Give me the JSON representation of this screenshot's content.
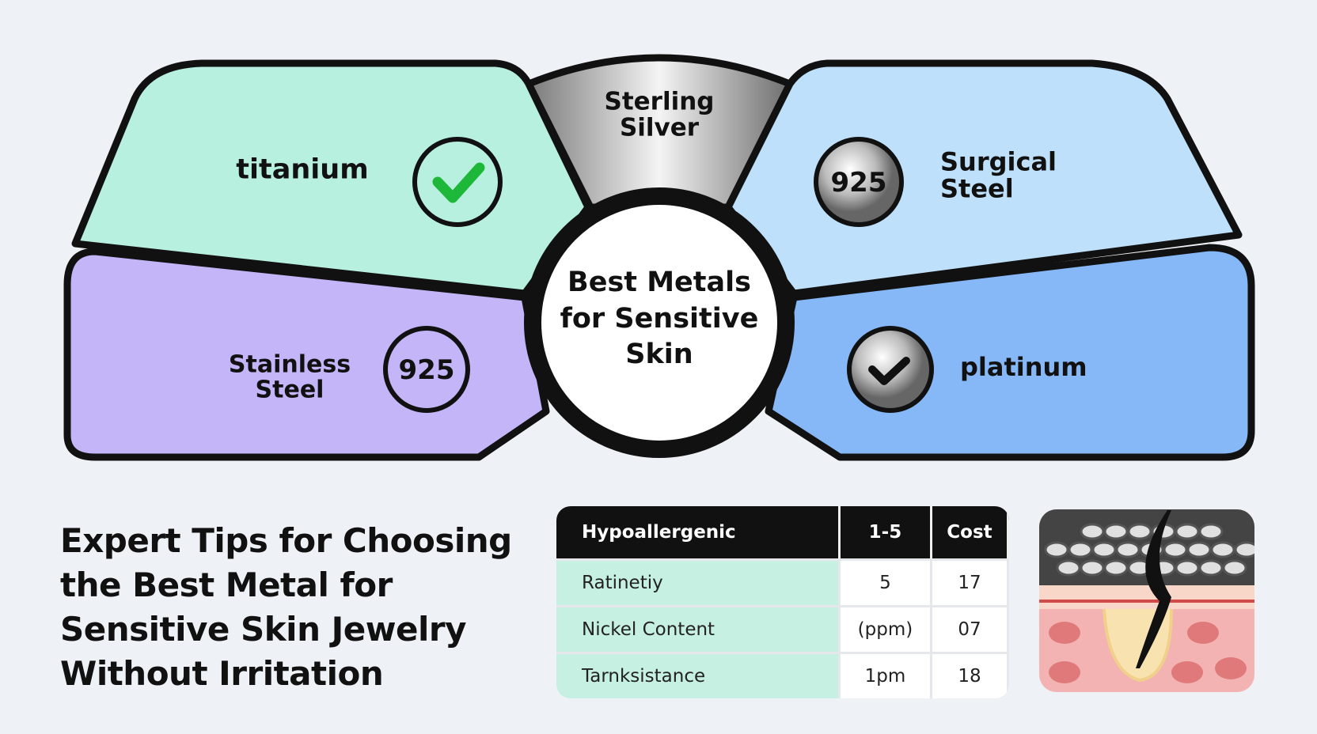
{
  "diagram": {
    "center": "Best Metals for Sensitive Skin",
    "segments": [
      {
        "label": "titanium"
      },
      {
        "label": "Sterling Silver"
      },
      {
        "label": "Surgical Steel",
        "badge": "925"
      },
      {
        "label": "Stainless Steel",
        "badge": "925"
      },
      {
        "label": "platinum"
      }
    ]
  },
  "headline": "Expert Tips for Choosing the Best Metal for Sensitive Skin Jewelry Without Irritation",
  "table": {
    "header": [
      "Hypoallergenic",
      "1-5",
      "Cost"
    ],
    "rows": [
      [
        "Ratinetiy",
        "5",
        "17"
      ],
      [
        "Nickel Content",
        "(ppm)",
        "07"
      ],
      [
        "Tarnksistance",
        "1pm",
        "18"
      ]
    ]
  }
}
